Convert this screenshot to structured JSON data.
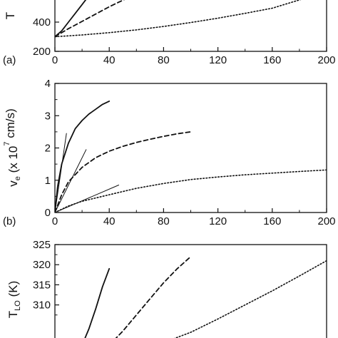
{
  "chart_data": [
    {
      "type": "line",
      "panel": "(a)",
      "ylabel": "T",
      "xlim": [
        0,
        200
      ],
      "ylim": [
        200,
        600
      ],
      "x_ticks": [
        "0",
        "40",
        "80",
        "120",
        "160",
        "200"
      ],
      "y_ticks": [
        "200",
        "400"
      ],
      "y_tick_values": [
        200,
        400
      ],
      "series": [
        {
          "style": "solid",
          "x": [
            0,
            5,
            10,
            15,
            20,
            25
          ],
          "y": [
            300,
            340,
            400,
            460,
            520,
            580
          ]
        },
        {
          "style": "dashed",
          "x": [
            0,
            10,
            20,
            30,
            40,
            50,
            62
          ],
          "y": [
            300,
            355,
            405,
            455,
            505,
            550,
            600
          ]
        },
        {
          "style": "dotted",
          "x": [
            0,
            20,
            40,
            60,
            80,
            100,
            120,
            140,
            160,
            190
          ],
          "y": [
            300,
            312,
            328,
            347,
            370,
            397,
            427,
            460,
            495,
            580
          ]
        }
      ]
    },
    {
      "type": "line",
      "panel": "(b)",
      "ylabel": "v",
      "ylabel_sub": "e",
      "ylabel_rest": " (x 10",
      "ylabel_sup": "7",
      "ylabel_unit": " cm/s)",
      "xlim": [
        0,
        200
      ],
      "ylim": [
        0,
        4
      ],
      "x_ticks": [
        "0",
        "40",
        "80",
        "120",
        "160",
        "200"
      ],
      "y_ticks": [
        "0",
        "1",
        "2",
        "3",
        "4"
      ],
      "series": [
        {
          "style": "solid",
          "x": [
            0,
            2,
            5,
            10,
            15,
            20,
            25,
            30,
            35,
            40
          ],
          "y": [
            0,
            0.8,
            1.5,
            2.15,
            2.6,
            2.85,
            3.05,
            3.2,
            3.35,
            3.45
          ]
        },
        {
          "style": "dashed",
          "x": [
            0,
            5,
            10,
            20,
            30,
            40,
            50,
            60,
            70,
            80,
            90,
            100
          ],
          "y": [
            0,
            0.55,
            0.95,
            1.4,
            1.7,
            1.9,
            2.05,
            2.17,
            2.27,
            2.36,
            2.44,
            2.5
          ]
        },
        {
          "style": "dotted",
          "x": [
            0,
            10,
            20,
            40,
            60,
            80,
            100,
            120,
            140,
            160,
            180,
            200
          ],
          "y": [
            0,
            0.2,
            0.35,
            0.55,
            0.75,
            0.9,
            1.02,
            1.1,
            1.17,
            1.22,
            1.27,
            1.32
          ]
        },
        {
          "style": "thin",
          "x": [
            0,
            8.5
          ],
          "y": [
            0,
            2.45
          ]
        },
        {
          "style": "thin",
          "x": [
            0,
            23
          ],
          "y": [
            0,
            1.95
          ]
        },
        {
          "style": "thin",
          "x": [
            0,
            47
          ],
          "y": [
            0,
            0.85
          ]
        }
      ]
    },
    {
      "type": "line",
      "ylabel": "T",
      "ylabel_sub": "LO",
      "ylabel_unit": " (K)",
      "xlim": [
        0,
        200
      ],
      "ylim": [
        300,
        325
      ],
      "y_ticks": [
        "310",
        "315",
        "320",
        "325"
      ],
      "y_tick_values": [
        310,
        315,
        320,
        325
      ],
      "series": [
        {
          "style": "solid",
          "x": [
            20,
            25,
            30,
            35,
            40
          ],
          "y": [
            300,
            304,
            309,
            314.5,
            319
          ]
        },
        {
          "style": "dashed",
          "x": [
            40,
            50,
            60,
            70,
            80,
            90,
            100
          ],
          "y": [
            300,
            303.5,
            307.5,
            311.5,
            315.5,
            319,
            322
          ]
        },
        {
          "style": "dotted",
          "x": [
            75,
            100,
            120,
            140,
            160,
            180,
            200
          ],
          "y": [
            300,
            303.2,
            306.5,
            310,
            313.5,
            317.2,
            321
          ]
        }
      ]
    }
  ]
}
